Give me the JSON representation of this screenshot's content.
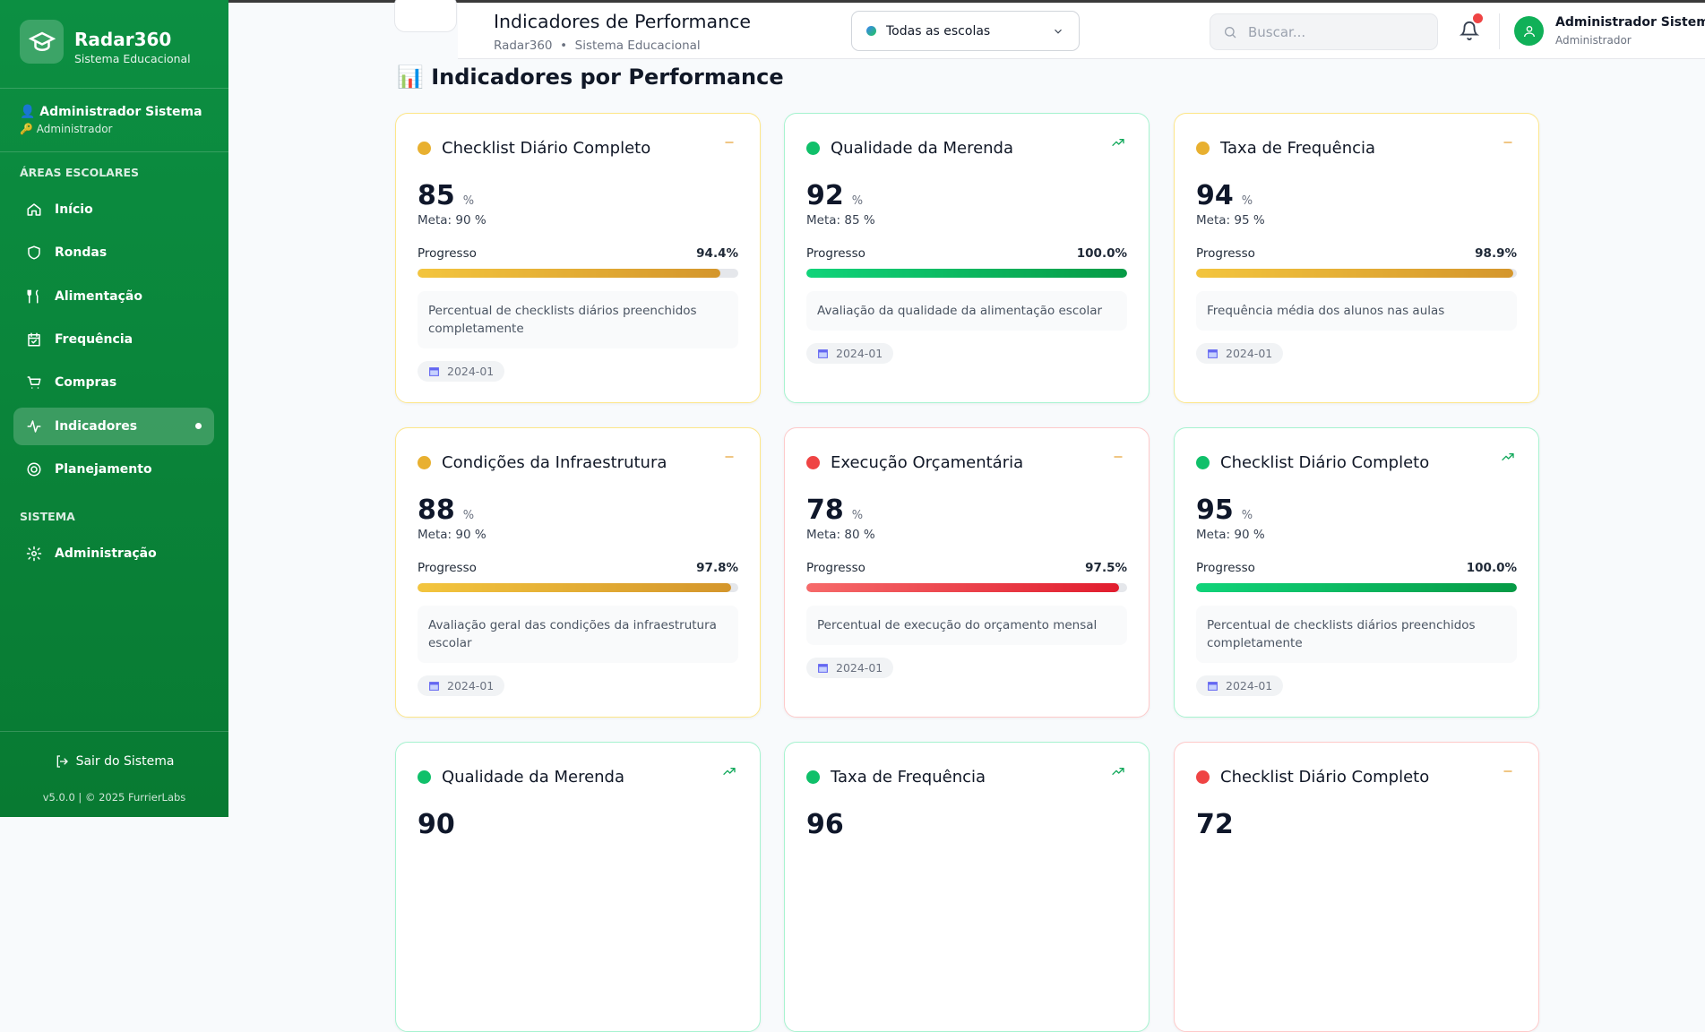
{
  "sidebar": {
    "brand": "Radar360",
    "brand_subtitle": "Sistema Educacional",
    "user_name": "👤 Administrador Sistema",
    "user_role": "🔑 Administrador",
    "sections": [
      {
        "title": "ÁREAS ESCOLARES",
        "items": [
          "Início",
          "Rondas",
          "Alimentação",
          "Frequência",
          "Compras",
          "Indicadores",
          "Planejamento"
        ]
      },
      {
        "title": "SISTEMA",
        "items": [
          "Administração"
        ]
      }
    ],
    "active_item": "Indicadores",
    "logout": "Sair do Sistema",
    "footer": "v5.0.0 | © 2025 FurrierLabs"
  },
  "header": {
    "title": "Indicadores de Performance",
    "breadcrumb": "Radar360  •  Sistema Educacional",
    "school_select": "Todas as escolas",
    "search_placeholder": "Buscar...",
    "user_name": "Administrador Sistema",
    "user_role": "Administrador"
  },
  "section_title": "📊 Indicadores por Performance",
  "labels": {
    "goal": "Meta:",
    "progress": "Progresso"
  },
  "cards": [
    {
      "title": "Checklist Diário Completo",
      "status": "warning",
      "trend": "stable",
      "value": 85,
      "unit": "%",
      "goal": "90 %",
      "progress": {
        "value": 94.4,
        "label": "94.4%"
      },
      "description": "Percentual de checklists diários preenchidos completamente",
      "date": "2024-01"
    },
    {
      "title": "Qualidade da Merenda",
      "status": "good",
      "trend": "up",
      "value": 92,
      "unit": "%",
      "goal": "85 %",
      "progress": {
        "value": 100.0,
        "label": "100.0%"
      },
      "description": "Avaliação da qualidade da alimentação escolar",
      "date": "2024-01"
    },
    {
      "title": "Taxa de Frequência",
      "status": "warning",
      "trend": "stable",
      "value": 94,
      "unit": "%",
      "goal": "95 %",
      "progress": {
        "value": 98.9,
        "label": "98.9%"
      },
      "description": "Frequência média dos alunos nas aulas",
      "date": "2024-01"
    },
    {
      "title": "Condições da Infraestrutura",
      "status": "warning",
      "trend": "stable",
      "value": 88,
      "unit": "%",
      "goal": "90 %",
      "progress": {
        "value": 97.8,
        "label": "97.8%"
      },
      "description": "Avaliação geral das condições da infraestrutura escolar",
      "date": "2024-01"
    },
    {
      "title": "Execução Orçamentária",
      "status": "critical",
      "trend": "stable",
      "value": 78,
      "unit": "%",
      "goal": "80 %",
      "progress": {
        "value": 97.5,
        "label": "97.5%"
      },
      "description": "Percentual de execução do orçamento mensal",
      "date": "2024-01"
    },
    {
      "title": "Checklist Diário Completo",
      "status": "good",
      "trend": "up",
      "value": 95,
      "unit": "%",
      "goal": "90 %",
      "progress": {
        "value": 100.0,
        "label": "100.0%"
      },
      "description": "Percentual de checklists diários preenchidos completamente",
      "date": "2024-01"
    },
    {
      "title": "Qualidade da Merenda",
      "status": "good",
      "trend": "up",
      "value": 90
    },
    {
      "title": "Taxa de Frequência",
      "status": "good",
      "trend": "up",
      "value": 96
    },
    {
      "title": "Checklist Diário Completo",
      "status": "critical",
      "trend": "stable",
      "value": 72
    }
  ]
}
